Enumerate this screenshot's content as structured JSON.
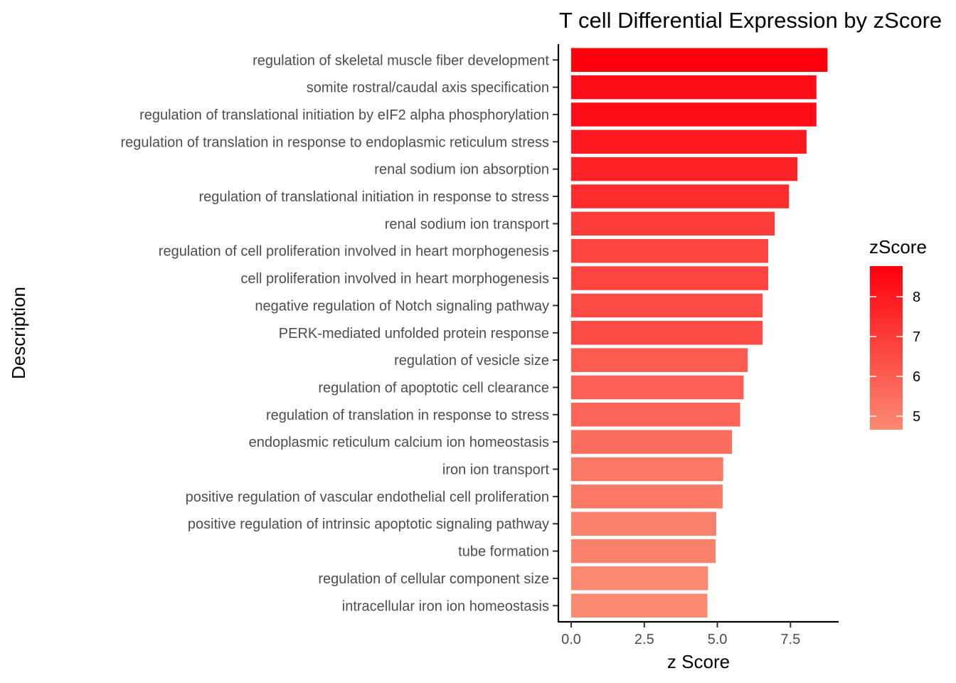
{
  "chart_data": {
    "type": "bar",
    "orientation": "horizontal",
    "title": "T cell Differential Expression by zScore",
    "xlabel": "z Score",
    "ylabel": "Description",
    "xlim": [
      -0.4,
      9.25
    ],
    "xticks": [
      0.0,
      2.5,
      5.0,
      7.5
    ],
    "xtick_labels": [
      "0.0",
      "2.5",
      "5.0",
      "7.5"
    ],
    "grid": false,
    "categories": [
      "regulation of skeletal muscle fiber development",
      "somite rostral/caudal axis specification",
      "regulation of translational initiation by eIF2 alpha phosphorylation",
      "regulation of translation in response to endoplasmic reticulum stress",
      "renal sodium ion absorption",
      "regulation of translational initiation in response to stress",
      "renal sodium ion transport",
      "regulation of cell proliferation involved in heart morphogenesis",
      "cell proliferation involved in heart morphogenesis",
      "negative regulation of Notch signaling pathway",
      "PERK-mediated unfolded protein response",
      "regulation of vesicle size",
      "regulation of apoptotic cell clearance",
      "regulation of translation in response to stress",
      "endoplasmic reticulum calcium ion homeostasis",
      "iron ion transport",
      "positive regulation of vascular endothelial cell proliferation",
      "positive regulation of intrinsic apoptotic signaling pathway",
      "tube formation",
      "regulation of cellular component size",
      "intracellular iron ion homeostasis"
    ],
    "values": [
      8.77,
      8.39,
      8.39,
      8.05,
      7.74,
      7.45,
      6.96,
      6.74,
      6.74,
      6.55,
      6.55,
      6.04,
      5.9,
      5.78,
      5.5,
      5.2,
      5.18,
      4.96,
      4.94,
      4.68,
      4.66
    ],
    "legend": {
      "title": "zScore",
      "position": "right",
      "ticks": [
        5,
        6,
        7,
        8
      ],
      "tick_labels": [
        "5",
        "6",
        "7",
        "8"
      ],
      "range": [
        4.66,
        8.77
      ],
      "color_low": "#fa8a72",
      "color_high": "#ff000d"
    }
  }
}
